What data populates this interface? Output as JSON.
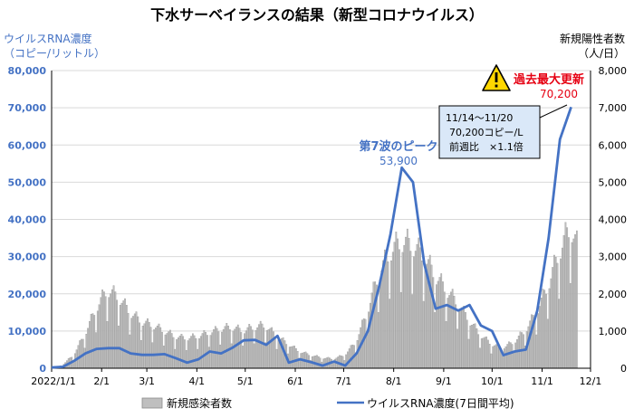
{
  "title": "下水サーベイランスの結果（新型コロナウイルス）",
  "left_axis_title": [
    "ウイルスRNA濃度",
    "（コピー/リットル）"
  ],
  "right_axis_title": [
    "新規陽性者数",
    "（人/日）"
  ],
  "colors": {
    "rna_line": "#4472c4",
    "rna_text": "#4472c4",
    "bars": "#bfbfbf",
    "bar_edge": "#8c8c8c",
    "grid": "#d9d9d9",
    "record_text": "#e60012",
    "warning_fill": "#ffd700",
    "box_fill": "#dae8f8"
  },
  "annotations": {
    "peak_label": "第7波のピーク",
    "peak_value": "53,900",
    "record_label": "過去最大更新",
    "record_value": "70,200",
    "box_line1": "11/14～11/20",
    "box_line2": "70,200コピー/L",
    "box_line3": "前週比　×1.1倍"
  },
  "legend": {
    "bars_label": "新規感染者数",
    "line_label": "ウイルスRNA濃度(7日間平均)"
  },
  "chart_data": {
    "type": "bar+line",
    "title": "下水サーベイランスの結果（新型コロナウイルス）",
    "x_ticks": [
      "2022/1/1",
      "2/1",
      "3/1",
      "4/1",
      "5/1",
      "6/1",
      "7/1",
      "8/1",
      "9/1",
      "10/1",
      "11/1",
      "12/1"
    ],
    "left_axis": {
      "label": "ウイルスRNA濃度（コピー/リットル）",
      "ylim": [
        0,
        80000
      ],
      "ticks": [
        "0",
        "10,000",
        "20,000",
        "30,000",
        "40,000",
        "50,000",
        "60,000",
        "70,000",
        "80,000"
      ]
    },
    "right_axis": {
      "label": "新規陽性者数（人/日）",
      "ylim": [
        0,
        8000
      ],
      "ticks": [
        "0",
        "1,000",
        "2,000",
        "3,000",
        "4,000",
        "5,000",
        "6,000",
        "7,000",
        "8,000"
      ]
    },
    "series": [
      {
        "name": "ウイルスRNA濃度(7日間平均)",
        "kind": "line",
        "axis": "left",
        "points": [
          [
            "2022-01-01",
            200
          ],
          [
            "2022-01-08",
            400
          ],
          [
            "2022-01-15",
            2000
          ],
          [
            "2022-01-22",
            4000
          ],
          [
            "2022-01-29",
            5200
          ],
          [
            "2022-02-05",
            5400
          ],
          [
            "2022-02-12",
            5400
          ],
          [
            "2022-02-19",
            4000
          ],
          [
            "2022-02-26",
            3600
          ],
          [
            "2022-03-05",
            3600
          ],
          [
            "2022-03-12",
            3800
          ],
          [
            "2022-03-19",
            2700
          ],
          [
            "2022-03-26",
            1500
          ],
          [
            "2022-04-02",
            2400
          ],
          [
            "2022-04-09",
            4500
          ],
          [
            "2022-04-16",
            4000
          ],
          [
            "2022-04-23",
            5500
          ],
          [
            "2022-04-30",
            7500
          ],
          [
            "2022-05-07",
            7600
          ],
          [
            "2022-05-14",
            6300
          ],
          [
            "2022-05-21",
            8700
          ],
          [
            "2022-05-28",
            1500
          ],
          [
            "2022-06-04",
            2400
          ],
          [
            "2022-06-11",
            1600
          ],
          [
            "2022-06-18",
            700
          ],
          [
            "2022-06-25",
            1800
          ],
          [
            "2022-07-02",
            700
          ],
          [
            "2022-07-09",
            4000
          ],
          [
            "2022-07-16",
            10000
          ],
          [
            "2022-07-23",
            22000
          ],
          [
            "2022-07-30",
            36000
          ],
          [
            "2022-08-06",
            53900
          ],
          [
            "2022-08-13",
            50000
          ],
          [
            "2022-08-20",
            28000
          ],
          [
            "2022-08-27",
            16000
          ],
          [
            "2022-09-03",
            17000
          ],
          [
            "2022-09-10",
            15500
          ],
          [
            "2022-09-17",
            17000
          ],
          [
            "2022-09-24",
            11500
          ],
          [
            "2022-10-01",
            10000
          ],
          [
            "2022-10-08",
            3500
          ],
          [
            "2022-10-15",
            4500
          ],
          [
            "2022-10-22",
            5000
          ],
          [
            "2022-10-29",
            15500
          ],
          [
            "2022-11-05",
            35000
          ],
          [
            "2022-11-12",
            61500
          ],
          [
            "2022-11-19",
            70200
          ]
        ]
      },
      {
        "name": "新規感染者数",
        "kind": "bar",
        "axis": "right",
        "weekly_pattern": [
          0.92,
          0.98,
          1.05,
          1.12,
          1.05,
          0.95,
          0.6
        ],
        "anchors": [
          [
            "2022-01-01",
            0
          ],
          [
            "2022-01-07",
            80
          ],
          [
            "2022-01-14",
            350
          ],
          [
            "2022-01-21",
            900
          ],
          [
            "2022-01-28",
            1600
          ],
          [
            "2022-02-04",
            2100
          ],
          [
            "2022-02-11",
            1900
          ],
          [
            "2022-02-18",
            1500
          ],
          [
            "2022-02-25",
            1250
          ],
          [
            "2022-03-04",
            1150
          ],
          [
            "2022-03-11",
            1000
          ],
          [
            "2022-03-18",
            850
          ],
          [
            "2022-03-25",
            800
          ],
          [
            "2022-04-01",
            850
          ],
          [
            "2022-04-08",
            950
          ],
          [
            "2022-04-15",
            1050
          ],
          [
            "2022-04-22",
            1100
          ],
          [
            "2022-04-29",
            1000
          ],
          [
            "2022-05-06",
            1100
          ],
          [
            "2022-05-13",
            1150
          ],
          [
            "2022-05-20",
            850
          ],
          [
            "2022-05-27",
            650
          ],
          [
            "2022-06-03",
            450
          ],
          [
            "2022-06-10",
            350
          ],
          [
            "2022-06-17",
            280
          ],
          [
            "2022-06-24",
            250
          ],
          [
            "2022-07-01",
            350
          ],
          [
            "2022-07-08",
            700
          ],
          [
            "2022-07-15",
            1500
          ],
          [
            "2022-07-22",
            2500
          ],
          [
            "2022-07-29",
            3100
          ],
          [
            "2022-08-05",
            3400
          ],
          [
            "2022-08-12",
            3300
          ],
          [
            "2022-08-19",
            3000
          ],
          [
            "2022-08-26",
            2500
          ],
          [
            "2022-09-02",
            2100
          ],
          [
            "2022-09-09",
            1750
          ],
          [
            "2022-09-16",
            1300
          ],
          [
            "2022-09-23",
            900
          ],
          [
            "2022-09-30",
            650
          ],
          [
            "2022-10-07",
            550
          ],
          [
            "2022-10-14",
            700
          ],
          [
            "2022-10-21",
            1000
          ],
          [
            "2022-10-28",
            1500
          ],
          [
            "2022-11-04",
            2200
          ],
          [
            "2022-11-11",
            3100
          ],
          [
            "2022-11-18",
            3800
          ],
          [
            "2022-11-22",
            3300
          ]
        ]
      }
    ]
  }
}
